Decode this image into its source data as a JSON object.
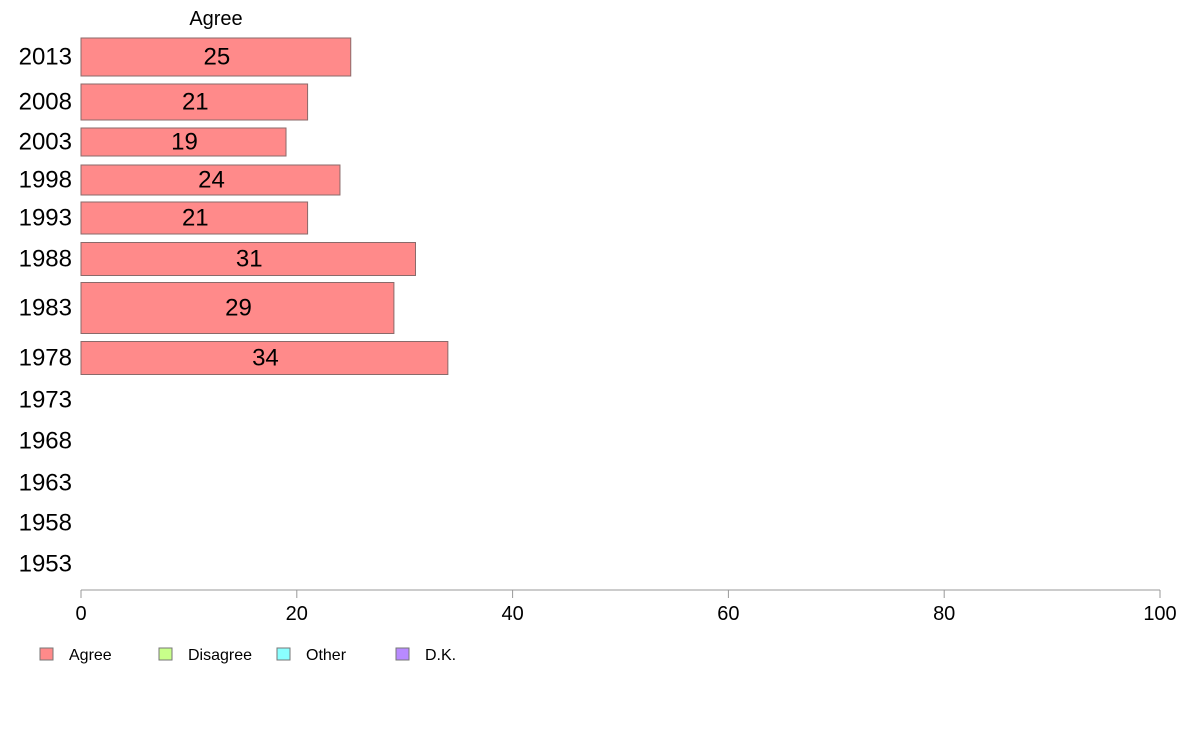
{
  "chart_data": {
    "type": "bar",
    "orientation": "horizontal",
    "title": "",
    "series_header": "Agree",
    "categories": [
      "2013",
      "2008",
      "2003",
      "1998",
      "1993",
      "1988",
      "1983",
      "1978",
      "1973",
      "1968",
      "1963",
      "1958",
      "1953"
    ],
    "series": [
      {
        "name": "Agree",
        "values": [
          25,
          21,
          19,
          24,
          21,
          31,
          29,
          34,
          null,
          null,
          null,
          null,
          null
        ]
      }
    ],
    "data_labels": [
      "25",
      "21",
      "19",
      "24",
      "21",
      "31",
      "29",
      "34",
      "",
      "",
      "",
      "",
      ""
    ],
    "xlim": [
      0,
      100
    ],
    "xticks": [
      0,
      20,
      40,
      60,
      80,
      100
    ],
    "xtick_labels": [
      "0",
      "20",
      "40",
      "60",
      "80",
      "100"
    ],
    "grid": false,
    "legend_position": "bottom-left",
    "legend": [
      {
        "label": "Agree",
        "color": "#ff8a8a"
      },
      {
        "label": "Disagree",
        "color": "#c8ff8a"
      },
      {
        "label": "Other",
        "color": "#8affff"
      },
      {
        "label": "D.K.",
        "color": "#b88aff"
      }
    ],
    "colors": {
      "bar_fill": "#ff8a8a",
      "bar_stroke": "#8a6a6a",
      "axis": "#999999"
    }
  }
}
